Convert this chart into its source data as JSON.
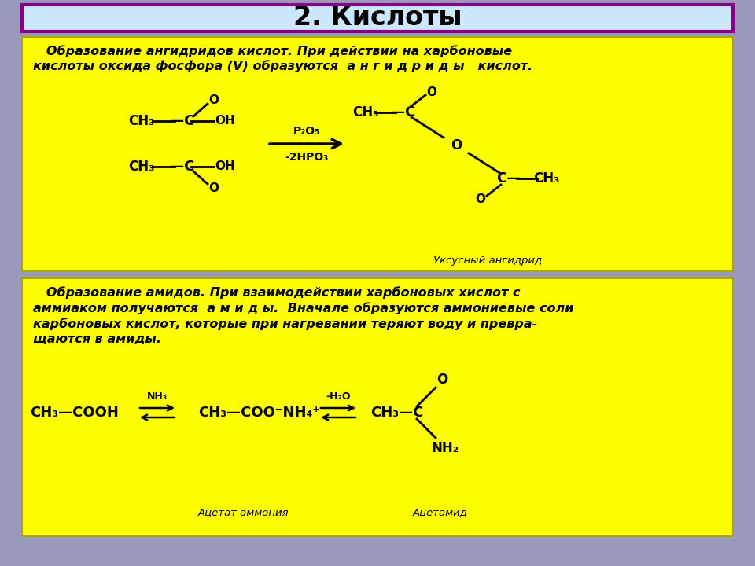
{
  "title": "2. Кислоты",
  "title_fontsize": 24,
  "title_bg": "#cce8ff",
  "title_border": "#880088",
  "page_bg": "#9999bb",
  "box_bg": "#ffff00",
  "text_color": "#000000",
  "box1_line1": "   Образование ангидридов кислот. При действии на харбоновые",
  "box1_line2": "кислоты оксида фосфора (V) образуются  а н г и д р и д ы   кислот.",
  "box2_line1": "   Образование амидов. При взаимодействии харбоновых хислот с",
  "box2_line2": "аммиаком получаются  а м и д ы.  Вначале образуются аммониевые соли",
  "box2_line3": "карбоновых кислот, которые при нагревании теряют воду и превра-",
  "box2_line4": "щаются в амиды.",
  "r1_above": "P₂O₅",
  "r1_below": "-2HPO₃",
  "r2_above1": "NH₃",
  "r2_above2": "-H₂O",
  "lbl_anhydride": "Уксусный ангидрид",
  "lbl_acetate": "Ацетат аммония",
  "lbl_acetamide": "Ацетамид"
}
